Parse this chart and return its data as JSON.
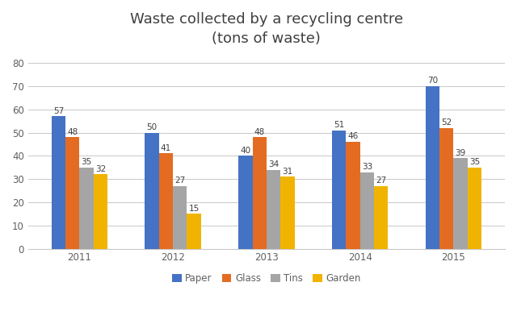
{
  "title": "Waste collected by a recycling centre\n(tons of waste)",
  "years": [
    "2011",
    "2012",
    "2013",
    "2014",
    "2015"
  ],
  "categories": [
    "Paper",
    "Glass",
    "Tins",
    "Garden"
  ],
  "values": {
    "Paper": [
      57,
      50,
      40,
      51,
      70
    ],
    "Glass": [
      48,
      41,
      48,
      46,
      52
    ],
    "Tins": [
      35,
      27,
      34,
      33,
      39
    ],
    "Garden": [
      32,
      15,
      31,
      27,
      35
    ]
  },
  "colors": {
    "Paper": "#4472C4",
    "Glass": "#E36C22",
    "Tins": "#A5A5A5",
    "Garden": "#F0B400"
  },
  "ylim": [
    0,
    85
  ],
  "yticks": [
    0,
    10,
    20,
    30,
    40,
    50,
    60,
    70,
    80
  ],
  "bar_width": 0.15,
  "title_fontsize": 13,
  "label_fontsize": 7.5,
  "tick_fontsize": 8.5,
  "legend_fontsize": 8.5,
  "background_color": "#FFFFFF",
  "grid_color": "#C8C8C8",
  "title_color": "#404040",
  "tick_color": "#606060",
  "label_color": "#404040"
}
